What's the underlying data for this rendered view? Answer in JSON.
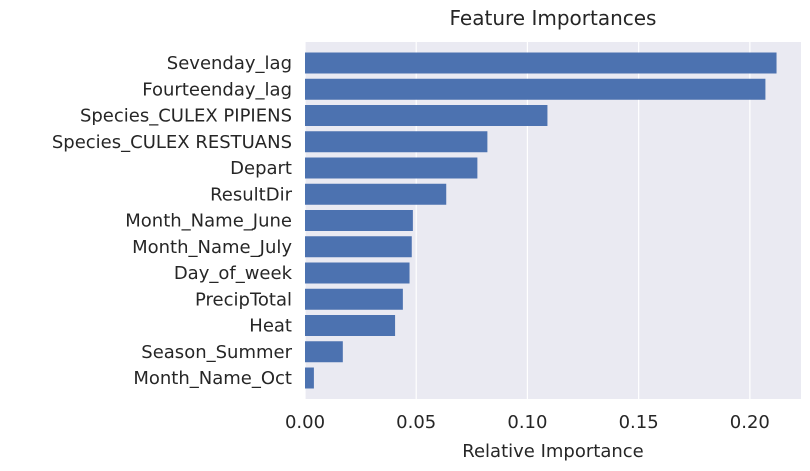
{
  "chart_data": {
    "type": "bar",
    "orientation": "horizontal",
    "title": "Feature Importances",
    "xlabel": "Relative Importance",
    "ylabel": "",
    "xlim": [
      0,
      0.223
    ],
    "xticks": [
      0.0,
      0.05,
      0.1,
      0.15,
      0.2
    ],
    "xtick_labels": [
      "0.00",
      "0.05",
      "0.10",
      "0.15",
      "0.20"
    ],
    "grid": true,
    "categories": [
      "Sevenday_lag",
      "Fourteenday_lag",
      "Species_CULEX PIPIENS",
      "Species_CULEX RESTUANS",
      "Depart",
      "ResultDir",
      "Month_Name_June",
      "Month_Name_July",
      "Day_of_week",
      "PrecipTotal",
      "Heat",
      "Season_Summer",
      "Month_Name_Oct"
    ],
    "values": [
      0.212,
      0.207,
      0.109,
      0.082,
      0.0775,
      0.0635,
      0.0485,
      0.048,
      0.047,
      0.044,
      0.0405,
      0.017,
      0.004
    ],
    "colors": {
      "bar": "#4c72b0",
      "plot_bg": "#eaeaf2",
      "grid": "#ffffff",
      "text": "#262626"
    }
  }
}
